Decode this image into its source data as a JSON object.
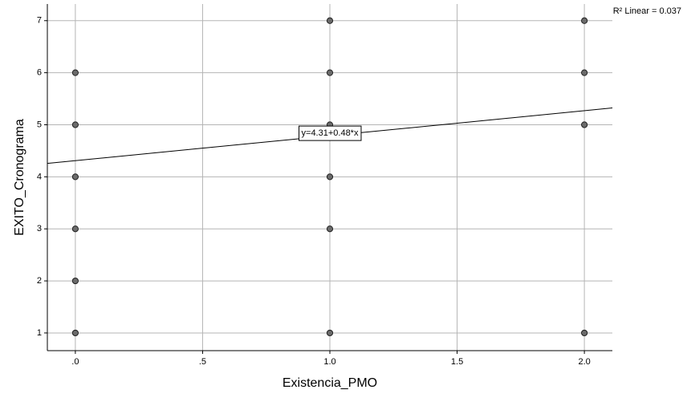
{
  "chart_data": {
    "type": "scatter",
    "x_label": "Existencia_PMO",
    "y_label": "EXITO_Cronograma",
    "x": [
      0,
      0,
      0,
      0,
      0,
      0,
      1,
      1,
      1,
      1,
      1,
      1,
      2,
      2,
      2,
      2
    ],
    "y": [
      6,
      5,
      4,
      3,
      2,
      1,
      7,
      6,
      5,
      4,
      3,
      1,
      7,
      6,
      5,
      1
    ],
    "color": "#6b6b6b",
    "xlim": [
      -0.11,
      2.11
    ],
    "xticks": [
      {
        "value": 0,
        "label": ".0"
      },
      {
        "value": 0.5,
        "label": ".5"
      },
      {
        "value": 1,
        "label": "1.0"
      },
      {
        "value": 1.5,
        "label": "1.5"
      },
      {
        "value": 2,
        "label": "2.0"
      }
    ],
    "ylim": [
      0.66,
      7.32
    ],
    "yticks": [
      1,
      2,
      3,
      4,
      5,
      6,
      7
    ],
    "grid": true,
    "fit": {
      "intercept": 4.31,
      "slope": 0.48,
      "label": "y=4.31+0.48*x"
    },
    "r2_label": "R² Linear = 0.037"
  }
}
